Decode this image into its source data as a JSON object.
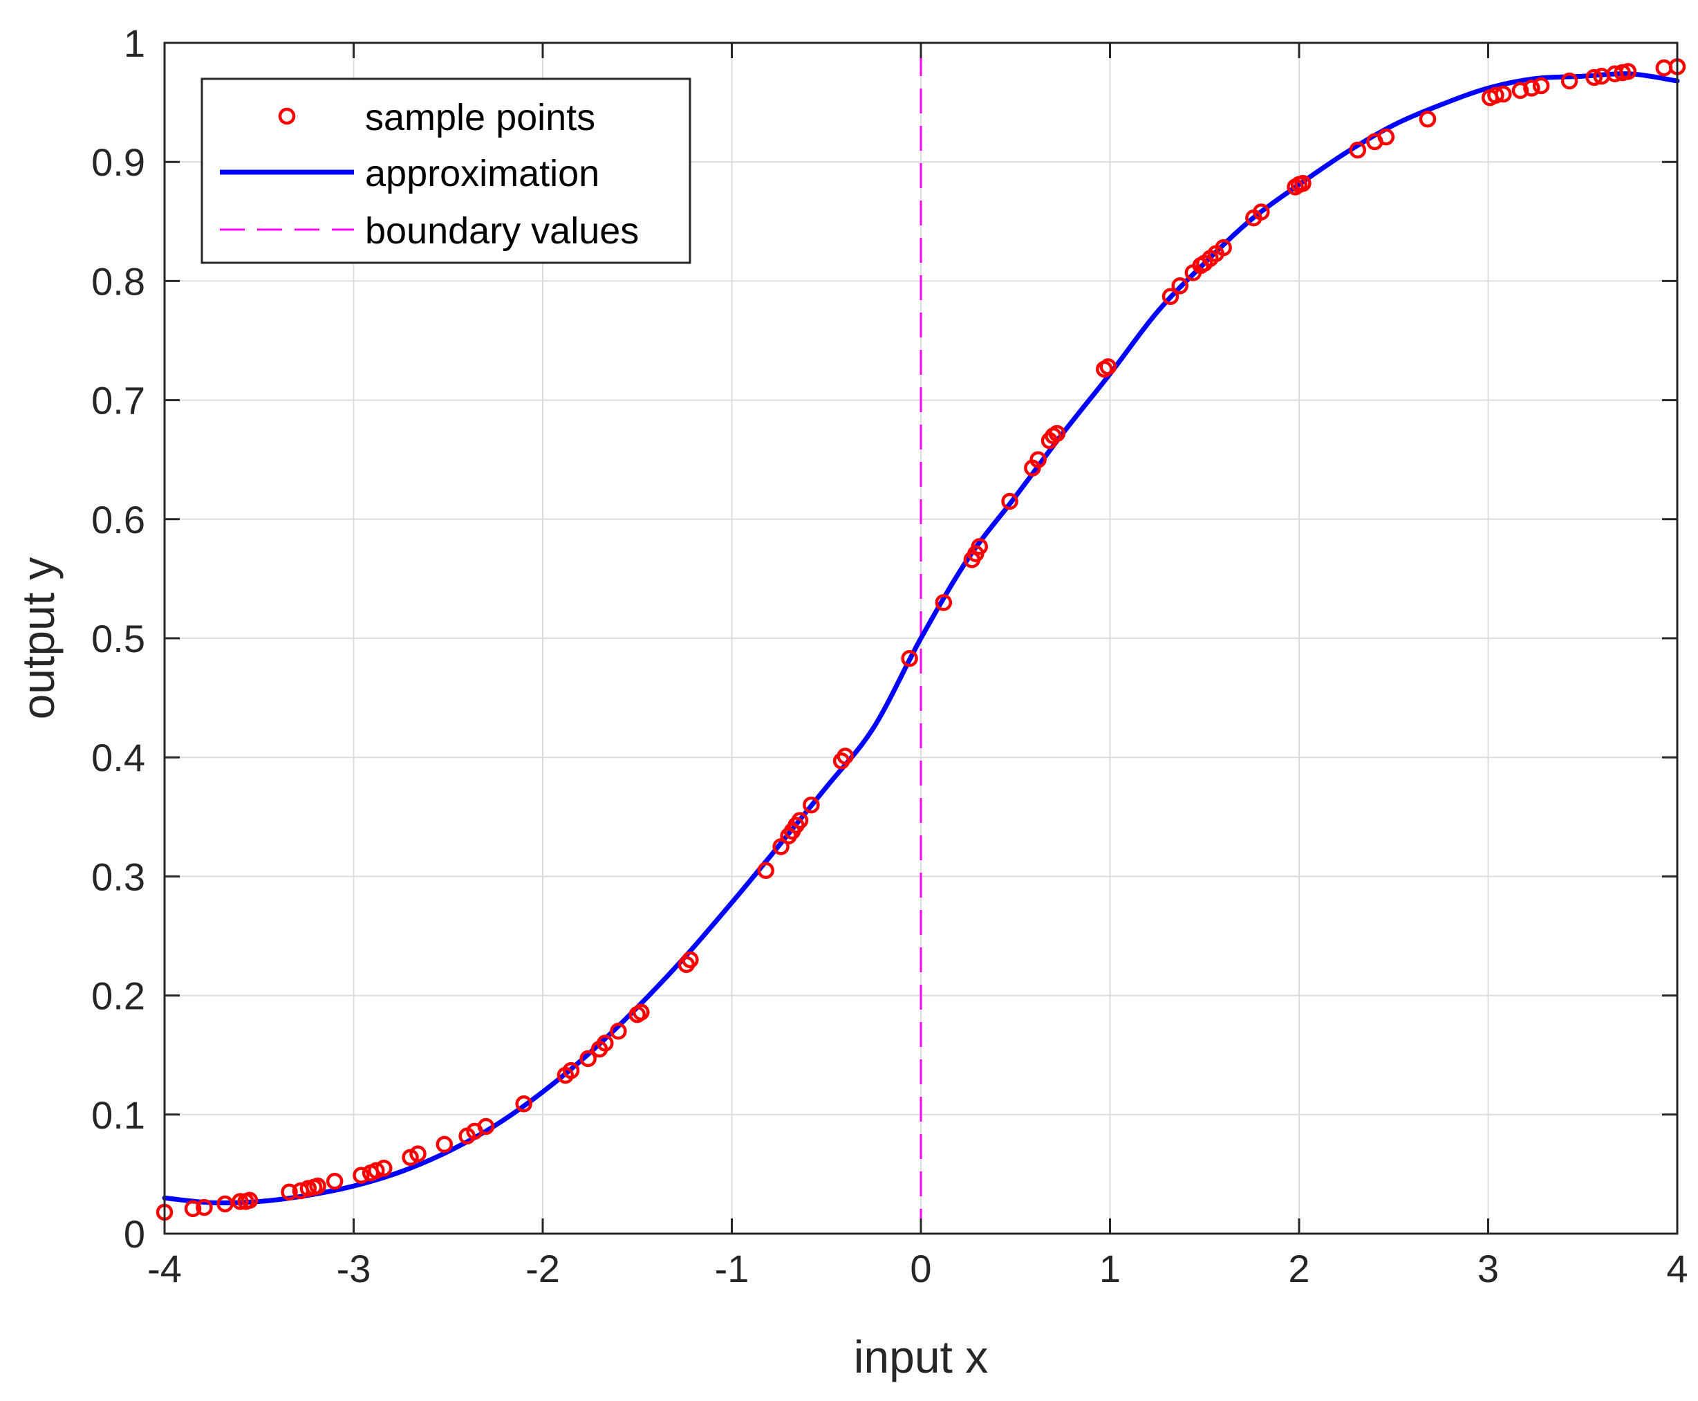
{
  "chart_data": {
    "type": "line",
    "title": "",
    "xlabel": "input x",
    "ylabel": "output y",
    "xlim": [
      -4,
      4
    ],
    "ylim": [
      0,
      1
    ],
    "xticks": [
      -4,
      -3,
      -2,
      -1,
      0,
      1,
      2,
      3,
      4
    ],
    "yticks": [
      0,
      0.1,
      0.2,
      0.3,
      0.4,
      0.5,
      0.6,
      0.7,
      0.8,
      0.9,
      1
    ],
    "grid": true,
    "legend_position": "top-left",
    "colors": {
      "samples": "#ff0000",
      "approximation": "#0000ff",
      "boundary": "#ff00ff",
      "grid": "#dddddd",
      "axes": "#262626"
    },
    "series": [
      {
        "name": "sample points",
        "style": "circles",
        "x": [
          -4.0,
          -3.85,
          -3.79,
          -3.68,
          -3.6,
          -3.57,
          -3.55,
          -3.34,
          -3.28,
          -3.24,
          -3.21,
          -3.19,
          -3.1,
          -2.96,
          -2.91,
          -2.88,
          -2.84,
          -2.7,
          -2.66,
          -2.52,
          -2.4,
          -2.36,
          -2.3,
          -2.1,
          -1.88,
          -1.85,
          -1.76,
          -1.7,
          -1.67,
          -1.6,
          -1.5,
          -1.48,
          -1.24,
          -1.22,
          -0.82,
          -0.74,
          -0.7,
          -0.68,
          -0.66,
          -0.64,
          -0.58,
          -0.42,
          -0.4,
          -0.06,
          0.12,
          0.27,
          0.29,
          0.31,
          0.47,
          0.59,
          0.62,
          0.68,
          0.7,
          0.72,
          0.97,
          0.99,
          1.32,
          1.37,
          1.44,
          1.48,
          1.5,
          1.53,
          1.56,
          1.6,
          1.76,
          1.8,
          1.98,
          2.0,
          2.02,
          2.31,
          2.4,
          2.46,
          2.68,
          3.01,
          3.04,
          3.08,
          3.17,
          3.23,
          3.28,
          3.43,
          3.56,
          3.6,
          3.67,
          3.71,
          3.74,
          3.93,
          4.0
        ],
        "y": [
          0.018,
          0.021,
          0.022,
          0.025,
          0.027,
          0.027,
          0.028,
          0.035,
          0.036,
          0.038,
          0.039,
          0.04,
          0.044,
          0.049,
          0.051,
          0.053,
          0.055,
          0.064,
          0.067,
          0.075,
          0.082,
          0.086,
          0.09,
          0.109,
          0.133,
          0.137,
          0.147,
          0.155,
          0.16,
          0.17,
          0.184,
          0.186,
          0.226,
          0.23,
          0.305,
          0.325,
          0.334,
          0.338,
          0.343,
          0.347,
          0.36,
          0.397,
          0.401,
          0.483,
          0.53,
          0.566,
          0.571,
          0.577,
          0.615,
          0.643,
          0.65,
          0.666,
          0.67,
          0.672,
          0.726,
          0.728,
          0.787,
          0.796,
          0.807,
          0.813,
          0.815,
          0.819,
          0.823,
          0.828,
          0.853,
          0.858,
          0.879,
          0.881,
          0.882,
          0.91,
          0.917,
          0.921,
          0.936,
          0.954,
          0.956,
          0.957,
          0.96,
          0.962,
          0.964,
          0.968,
          0.971,
          0.972,
          0.974,
          0.975,
          0.976,
          0.979,
          0.98
        ]
      },
      {
        "name": "approximation",
        "style": "line",
        "x": [
          -4.0,
          -3.75,
          -3.5,
          -3.25,
          -3.0,
          -2.75,
          -2.5,
          -2.25,
          -2.0,
          -1.75,
          -1.5,
          -1.25,
          -1.0,
          -0.75,
          -0.5,
          -0.25,
          0.0,
          0.25,
          0.5,
          0.75,
          1.0,
          1.25,
          1.5,
          1.75,
          2.0,
          2.25,
          2.5,
          2.75,
          3.0,
          3.25,
          3.5,
          3.75,
          4.0
        ],
        "y": [
          0.03,
          0.026,
          0.027,
          0.032,
          0.04,
          0.052,
          0.069,
          0.091,
          0.119,
          0.152,
          0.19,
          0.232,
          0.278,
          0.326,
          0.375,
          0.425,
          0.5,
          0.567,
          0.619,
          0.672,
          0.722,
          0.774,
          0.815,
          0.852,
          0.881,
          0.908,
          0.931,
          0.948,
          0.962,
          0.97,
          0.972,
          0.974,
          0.968
        ]
      },
      {
        "name": "boundary values",
        "style": "dashed-vertical",
        "x": [
          0,
          0
        ],
        "y": [
          0,
          1
        ]
      }
    ]
  }
}
